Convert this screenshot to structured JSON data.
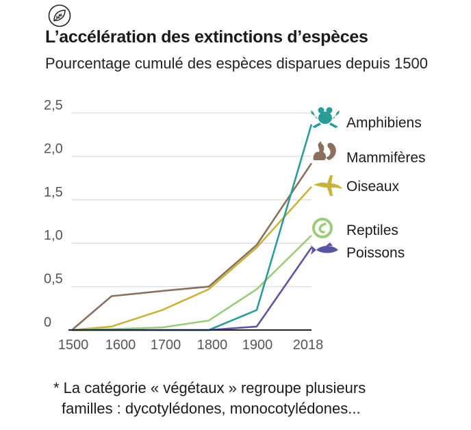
{
  "header": {
    "icon": "leaf-icon",
    "title": "L’accélération des extinctions d’espèces",
    "subtitle": "Pourcentage cumulé des espèces disparues depuis 1500"
  },
  "footnote": {
    "line1": "* La catégorie « végétaux » regroupe plusieurs",
    "line2": "familles : dycotylédones, monocotylédones..."
  },
  "chart_data": {
    "type": "line",
    "title": "L’accélération des extinctions d’espèces",
    "subtitle": "Pourcentage cumulé des espèces disparues depuis 1500",
    "x": [
      1500,
      1600,
      1700,
      1800,
      1900,
      2018
    ],
    "x_tick_labels": [
      "1500",
      "1600",
      "1700",
      "1800",
      "1900",
      "2018"
    ],
    "y_tick_labels": [
      "0",
      "0,5",
      "1,0",
      "1,5",
      "2,0",
      "2,5"
    ],
    "y_ticks": [
      0,
      0.5,
      1.0,
      1.5,
      2.0,
      2.5
    ],
    "ylim": [
      0,
      2.5
    ],
    "grid": true,
    "legend": "inline-right",
    "series": [
      {
        "name": "Amphibiens",
        "icon": "frog-icon",
        "color": "#2a9c98",
        "values": [
          0,
          0,
          0,
          0,
          0.23,
          2.37
        ]
      },
      {
        "name": "Mammifères",
        "icon": "squirrel-icon",
        "color": "#8b6f5e",
        "values": [
          0,
          0.39,
          0.45,
          0.5,
          0.98,
          1.92
        ]
      },
      {
        "name": "Oiseaux",
        "icon": "bird-icon",
        "color": "#c9b23a",
        "values": [
          0,
          0.04,
          0.23,
          0.47,
          0.95,
          1.65
        ]
      },
      {
        "name": "Reptiles",
        "icon": "snake-icon",
        "color": "#9ccb7a",
        "values": [
          0,
          0.01,
          0.03,
          0.11,
          0.47,
          1.09
        ]
      },
      {
        "name": "Poissons",
        "icon": "fish-icon",
        "color": "#5a55a3",
        "values": [
          0,
          0,
          0,
          0,
          0.04,
          0.95
        ]
      }
    ]
  }
}
